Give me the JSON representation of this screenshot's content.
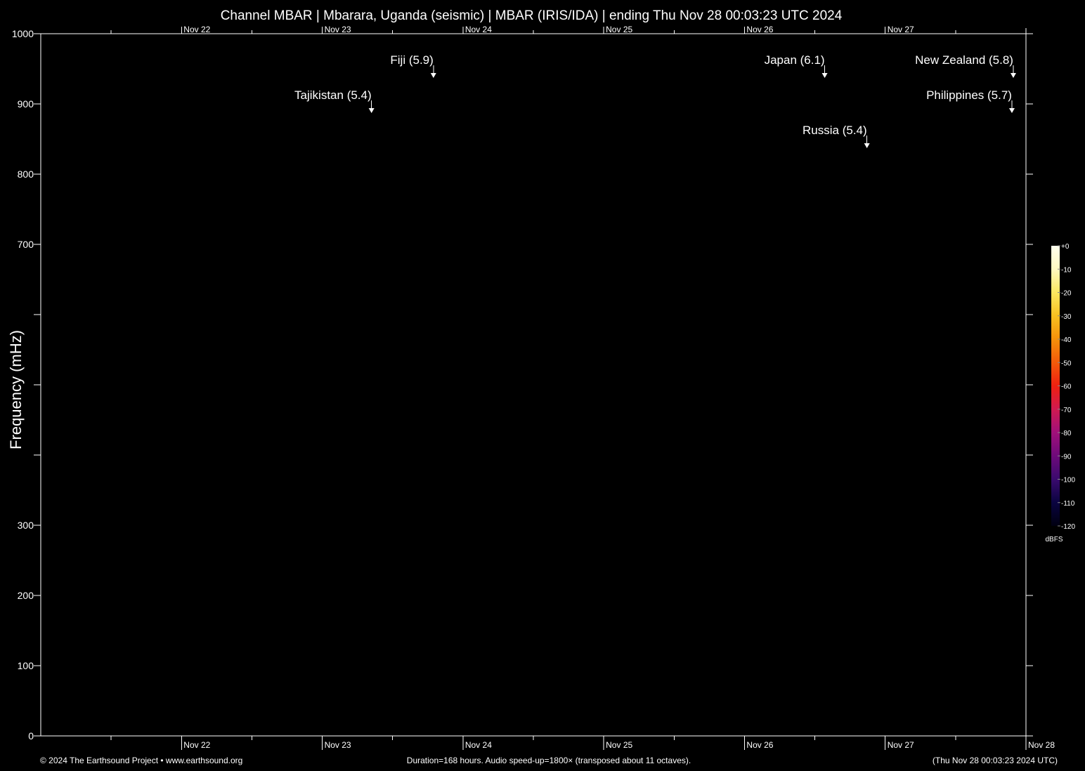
{
  "title": "Channel MBAR | Mbarara, Uganda (seismic) | MBAR (IRIS/IDA) | ending Thu Nov 28 00:03:23 UTC 2024",
  "chart_data": {
    "type": "heatmap",
    "title": "Channel MBAR | Mbarara, Uganda (seismic) | MBAR (IRIS/IDA) | ending Thu Nov 28 00:03:23 UTC 2024",
    "ylabel": "Frequency (mHz)",
    "ylim": [
      0,
      1000
    ],
    "yticks": [
      0,
      100,
      200,
      300,
      400,
      500,
      600,
      700,
      800,
      900,
      1000
    ],
    "ytick_labels": [
      "0",
      "100",
      "200",
      "300",
      "",
      "",
      "",
      "700",
      "800",
      "900",
      "1000"
    ],
    "x_days_range": [
      0,
      7
    ],
    "x_day_labels_top": [
      "Nov 22",
      "Nov 23",
      "Nov 24",
      "Nov 25",
      "Nov 26",
      "Nov 27"
    ],
    "x_day_labels_bottom": [
      "Nov 22",
      "Nov 23",
      "Nov 24",
      "Nov 25",
      "Nov 26",
      "Nov 27",
      "Nov 28"
    ],
    "events": [
      {
        "label": "Tajikistan (5.4)",
        "day": 2.35,
        "freq": 900
      },
      {
        "label": "Fiji (5.9)",
        "day": 2.79,
        "freq": 950
      },
      {
        "label": "Japan (6.1)",
        "day": 5.57,
        "freq": 950
      },
      {
        "label": "Russia (5.4)",
        "day": 5.87,
        "freq": 850
      },
      {
        "label": "New Zealand (5.8)",
        "day": 6.91,
        "freq": 950
      },
      {
        "label": "Philippines (5.7)",
        "day": 6.9,
        "freq": 900
      }
    ],
    "colorbar": {
      "unit": "dBFS",
      "ticks": [
        0,
        -10,
        -20,
        -30,
        -40,
        -50,
        -60,
        -70,
        -80,
        -90,
        -100,
        -110,
        -120
      ],
      "tick_labels": [
        "+0",
        "-10",
        "-20",
        "-30",
        "-40",
        "-50",
        "-60",
        "-70",
        "-80",
        "-90",
        "-100",
        "-110",
        "-120"
      ],
      "colors": [
        "#000010",
        "#0a0440",
        "#3a0a6e",
        "#6e0a7a",
        "#a0107a",
        "#d01a50",
        "#f02010",
        "#f25a0a",
        "#f5900a",
        "#f8c020",
        "#fce860",
        "#fff8c0",
        "#ffffee"
      ]
    },
    "background": "#000000"
  },
  "footer": {
    "left": "© 2024 The Earthsound Project • www.earthsound.org",
    "center": "Duration=168 hours. Audio speed-up=1800× (transposed about 11 octaves).",
    "right": "(Thu Nov 28 00:03:23 2024 UTC)"
  }
}
